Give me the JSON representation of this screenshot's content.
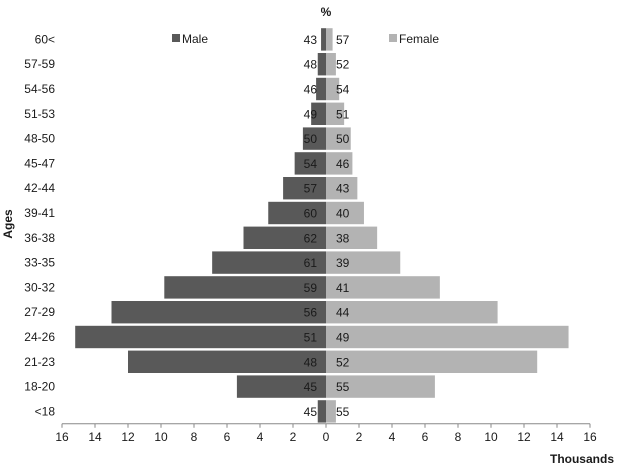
{
  "chart_data": {
    "type": "bar",
    "orientation": "horizontal",
    "title": "%",
    "ylabel": "Ages",
    "xlabel": "Thousands",
    "categories": [
      "60<",
      "57-59",
      "54-56",
      "51-53",
      "48-50",
      "45-47",
      "42-44",
      "39-41",
      "36-38",
      "33-35",
      "30-32",
      "27-29",
      "24-26",
      "21-23",
      "18-20",
      "<18"
    ],
    "series": [
      {
        "name": "Male",
        "color": "#595959",
        "values": [
          0.3,
          0.5,
          0.6,
          0.9,
          1.4,
          1.9,
          2.6,
          3.5,
          5.0,
          6.9,
          9.8,
          13.0,
          15.2,
          12.0,
          5.4,
          0.5
        ],
        "percent": [
          "43",
          "48",
          "46",
          "49",
          "50",
          "54",
          "57",
          "60",
          "62",
          "61",
          "59",
          "56",
          "51",
          "48",
          "45",
          "45"
        ]
      },
      {
        "name": "Female",
        "color": "#b3b3b3",
        "values": [
          0.4,
          0.6,
          0.8,
          1.1,
          1.5,
          1.6,
          1.9,
          2.3,
          3.1,
          4.5,
          6.9,
          10.4,
          14.7,
          12.8,
          6.6,
          0.6
        ],
        "percent": [
          "57",
          "52",
          "54",
          "51",
          "50",
          "46",
          "43",
          "40",
          "38",
          "39",
          "41",
          "44",
          "49",
          "52",
          "55",
          "55"
        ]
      }
    ],
    "xlim": [
      -16,
      16
    ],
    "xticks": [
      "16",
      "14",
      "12",
      "10",
      "8",
      "6",
      "4",
      "2",
      "0",
      "2",
      "4",
      "6",
      "8",
      "10",
      "12",
      "14",
      "16"
    ],
    "legend": "top",
    "grid": false
  }
}
